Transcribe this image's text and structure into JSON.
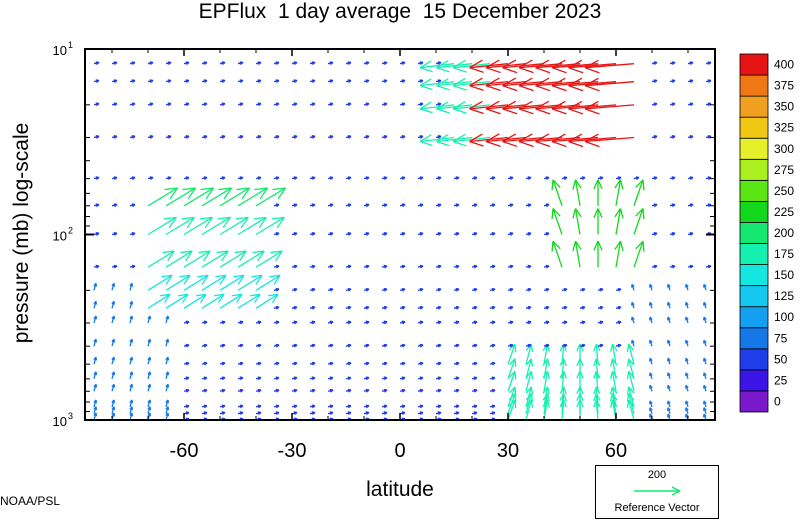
{
  "chart_data": {
    "type": "quiver",
    "title": "EPFlux  1 day average  15 December 2023",
    "xlabel": "latitude",
    "ylabel": "pressure (mb)  log-scale",
    "x_ticks": [
      "-60",
      "-30",
      "0",
      "30",
      "60"
    ],
    "y_ticks": [
      "10",
      "10",
      "10"
    ],
    "y_tick_exponents": [
      "1",
      "2",
      "3"
    ],
    "xlim": [
      -87.5,
      87.5
    ],
    "ylim_mb": [
      1000,
      10
    ],
    "y_scale": "log",
    "colorbar": {
      "levels": [
        "0",
        "25",
        "50",
        "75",
        "100",
        "125",
        "150",
        "175",
        "200",
        "225",
        "250",
        "275",
        "300",
        "325",
        "350",
        "375",
        "400"
      ],
      "colors": [
        "#7a19cc",
        "#3b14e8",
        "#1f3de8",
        "#1478e8",
        "#14a0f0",
        "#14c8f0",
        "#14e6e0",
        "#14f0b0",
        "#14e870",
        "#14d81e",
        "#5ae614",
        "#aaf01e",
        "#e6f028",
        "#f0c814",
        "#f0a01e",
        "#f07814",
        "#e61414"
      ]
    },
    "arrow_fields": [
      {
        "region": "southern-hemisphere lower troposphere",
        "lat_range": [
          -75,
          -45
        ],
        "p_range_mb": [
          1000,
          250
        ],
        "magnitude_approx": 80
      },
      {
        "region": "southern-hemisphere upper troposphere",
        "lat_range": [
          -67,
          -40
        ],
        "p_range_mb": [
          250,
          60
        ],
        "magnitude_approx": 180
      },
      {
        "region": "northern-hemisphere lower troposphere",
        "lat_range": [
          30,
          65
        ],
        "p_range_mb": [
          1000,
          450
        ],
        "magnitude_approx": 180
      },
      {
        "region": "northern-hemisphere stratosphere",
        "lat_range": [
          15,
          65
        ],
        "p_range_mb": [
          40,
          10
        ],
        "magnitude_approx": 400
      }
    ],
    "reference_vector": {
      "value": "200",
      "label": "Reference Vector",
      "color": "#14e870"
    },
    "credit": "NOAA/PSL"
  }
}
